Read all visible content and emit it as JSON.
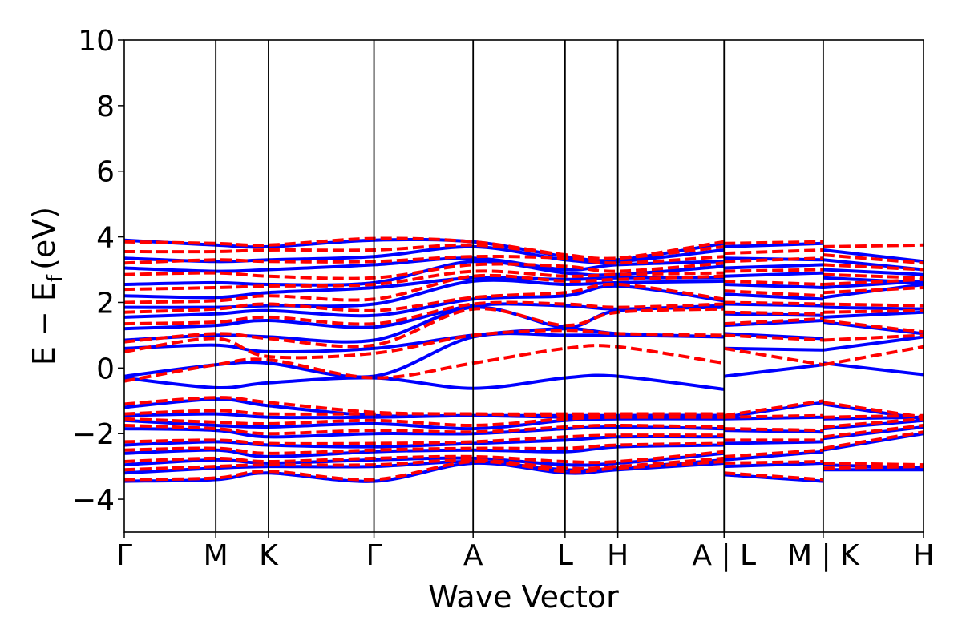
{
  "chart_data": {
    "type": "line",
    "xlabel": "Wave Vector",
    "ylabel_main": "E − E",
    "ylabel_sub": "f",
    "ylabel_unit": "(eV)",
    "ylim": [
      -5,
      10
    ],
    "yticks": [
      -4,
      -2,
      0,
      2,
      4,
      6,
      8,
      10
    ],
    "ytick_labels": [
      "−4",
      "−2",
      "0",
      "2",
      "4",
      "6",
      "8",
      "10"
    ],
    "xlim": [
      0,
      1
    ],
    "kpoints": [
      {
        "label": "Γ",
        "x": 0.0
      },
      {
        "label": "M",
        "x": 0.1145
      },
      {
        "label": "K",
        "x": 0.1805
      },
      {
        "label": "Γ",
        "x": 0.3125
      },
      {
        "label": "A",
        "x": 0.4365
      },
      {
        "label": "L",
        "x": 0.5515
      },
      {
        "label": "H",
        "x": 0.6175
      },
      {
        "label": "A | L",
        "x": 0.7505
      },
      {
        "label": "M | K",
        "x": 0.8745
      },
      {
        "label": "H",
        "x": 1.0
      }
    ],
    "series": [
      {
        "style": "solid",
        "color": "#0000ff",
        "x": [
          0.0,
          0.1145,
          0.1805,
          0.3125,
          0.4365,
          0.5515,
          0.6175,
          0.7505
        ],
        "bands": [
          [
            -3.45,
            -3.4,
            -3.2,
            -3.45,
            -2.9,
            -3.2,
            -3.1,
            -2.9
          ],
          [
            -3.2,
            -3.05,
            -3.0,
            -3.0,
            -2.85,
            -3.1,
            -3.05,
            -2.8
          ],
          [
            -2.95,
            -2.8,
            -2.9,
            -2.8,
            -2.75,
            -2.95,
            -2.9,
            -2.6
          ],
          [
            -2.6,
            -2.5,
            -2.7,
            -2.55,
            -2.5,
            -2.55,
            -2.4,
            -2.35
          ],
          [
            -2.35,
            -2.25,
            -2.35,
            -2.4,
            -2.3,
            -2.2,
            -2.1,
            -2.1
          ],
          [
            -1.85,
            -1.9,
            -2.1,
            -2.0,
            -2.0,
            -1.85,
            -1.8,
            -1.85
          ],
          [
            -1.6,
            -1.75,
            -1.8,
            -1.7,
            -1.85,
            -1.6,
            -1.55,
            -1.55
          ],
          [
            -1.45,
            -1.4,
            -1.5,
            -1.5,
            -1.45,
            -1.5,
            -1.45,
            -1.45
          ],
          [
            -1.2,
            -0.95,
            -1.15,
            -1.45,
            -1.45,
            -1.45,
            -1.45,
            -1.45
          ],
          [
            -0.3,
            -0.6,
            -0.45,
            -0.3,
            -0.62,
            -0.3,
            -0.25,
            -0.65
          ],
          [
            -0.25,
            0.1,
            0.15,
            -0.25,
            0.95,
            1.0,
            1.0,
            0.95
          ],
          [
            0.6,
            0.7,
            0.5,
            0.6,
            1.0,
            1.2,
            1.05,
            0.95
          ],
          [
            0.85,
            1.0,
            0.95,
            0.85,
            1.85,
            1.25,
            1.75,
            1.85
          ],
          [
            1.2,
            1.3,
            1.45,
            1.25,
            1.9,
            1.9,
            1.8,
            1.9
          ],
          [
            1.55,
            1.65,
            1.75,
            1.6,
            2.1,
            2.2,
            2.5,
            2.05
          ],
          [
            1.85,
            1.85,
            1.9,
            1.95,
            2.65,
            2.55,
            2.6,
            2.65
          ],
          [
            2.2,
            2.15,
            2.3,
            2.45,
            2.75,
            2.7,
            2.75,
            2.75
          ],
          [
            2.55,
            2.6,
            2.55,
            2.6,
            3.25,
            2.9,
            2.85,
            3.1
          ],
          [
            3.05,
            2.95,
            3.0,
            3.15,
            3.35,
            3.0,
            3.15,
            3.25
          ],
          [
            3.35,
            3.25,
            3.3,
            3.4,
            3.7,
            3.3,
            3.25,
            3.6
          ],
          [
            3.9,
            3.75,
            3.7,
            3.9,
            3.85,
            3.4,
            3.3,
            3.8
          ]
        ]
      },
      {
        "style": "dashed",
        "color": "#ff0000",
        "x": [
          0.0,
          0.1145,
          0.1805,
          0.3125,
          0.4365,
          0.5515,
          0.6175,
          0.7505
        ],
        "bands": [
          [
            -3.4,
            -3.35,
            -3.15,
            -3.4,
            -2.85,
            -3.15,
            -3.05,
            -2.85
          ],
          [
            -3.1,
            -3.0,
            -2.95,
            -2.95,
            -2.8,
            -3.05,
            -3.0,
            -2.75
          ],
          [
            -2.85,
            -2.75,
            -2.85,
            -2.75,
            -2.7,
            -2.85,
            -2.85,
            -2.55
          ],
          [
            -2.5,
            -2.45,
            -2.6,
            -2.5,
            -2.45,
            -2.45,
            -2.35,
            -2.3
          ],
          [
            -2.25,
            -2.2,
            -2.3,
            -2.3,
            -2.25,
            -2.1,
            -2.05,
            -2.05
          ],
          [
            -1.75,
            -1.85,
            -2.0,
            -1.9,
            -1.95,
            -1.8,
            -1.75,
            -1.8
          ],
          [
            -1.55,
            -1.65,
            -1.7,
            -1.6,
            -1.75,
            -1.55,
            -1.5,
            -1.5
          ],
          [
            -1.4,
            -1.3,
            -1.4,
            -1.4,
            -1.4,
            -1.45,
            -1.4,
            -1.4
          ],
          [
            -1.1,
            -0.9,
            -1.05,
            -1.35,
            -1.4,
            -1.4,
            -1.4,
            -1.4
          ],
          [
            -0.4,
            0.1,
            0.25,
            -0.3,
            0.15,
            0.6,
            0.65,
            0.15
          ],
          [
            0.5,
            0.9,
            0.35,
            0.45,
            1.0,
            1.15,
            1.05,
            1.0
          ],
          [
            0.8,
            1.05,
            0.9,
            0.7,
            1.8,
            1.3,
            1.7,
            1.8
          ],
          [
            1.35,
            1.4,
            1.55,
            1.35,
            1.95,
            1.95,
            1.85,
            1.95
          ],
          [
            1.7,
            1.8,
            1.95,
            1.75,
            2.15,
            2.3,
            2.55,
            2.1
          ],
          [
            2.0,
            2.05,
            2.2,
            2.1,
            2.8,
            2.65,
            2.7,
            2.8
          ],
          [
            2.4,
            2.45,
            2.5,
            2.55,
            2.95,
            2.8,
            2.85,
            2.9
          ],
          [
            2.85,
            2.9,
            2.8,
            2.75,
            3.15,
            3.1,
            2.95,
            3.2
          ],
          [
            3.2,
            3.3,
            3.25,
            3.25,
            3.4,
            3.35,
            3.2,
            3.4
          ],
          [
            3.55,
            3.55,
            3.6,
            3.6,
            3.75,
            3.45,
            3.35,
            3.7
          ],
          [
            3.85,
            3.8,
            3.75,
            3.95,
            3.85,
            3.45,
            3.35,
            3.85
          ]
        ]
      },
      {
        "style": "solid",
        "color": "#0000ff",
        "x": [
          0.7505,
          0.8745
        ],
        "bands": [
          [
            -3.25,
            -3.45
          ],
          [
            -3.0,
            -2.9
          ],
          [
            -2.8,
            -2.55
          ],
          [
            -2.3,
            -2.25
          ],
          [
            -1.9,
            -1.95
          ],
          [
            -1.55,
            -1.5
          ],
          [
            -1.5,
            -1.05
          ],
          [
            -0.25,
            0.1
          ],
          [
            0.6,
            0.55
          ],
          [
            1.05,
            0.9
          ],
          [
            1.3,
            1.45
          ],
          [
            1.65,
            1.6
          ],
          [
            1.95,
            1.9
          ],
          [
            2.25,
            2.1
          ],
          [
            2.55,
            2.45
          ],
          [
            2.8,
            2.9
          ],
          [
            3.05,
            3.15
          ],
          [
            3.35,
            3.3
          ],
          [
            3.7,
            3.8
          ]
        ]
      },
      {
        "style": "dashed",
        "color": "#ff0000",
        "x": [
          0.7505,
          0.8745
        ],
        "bands": [
          [
            -3.2,
            -3.4
          ],
          [
            -2.9,
            -2.85
          ],
          [
            -2.7,
            -2.5
          ],
          [
            -2.2,
            -2.2
          ],
          [
            -1.85,
            -1.9
          ],
          [
            -1.5,
            -1.45
          ],
          [
            -1.45,
            -1.0
          ],
          [
            0.6,
            0.1
          ],
          [
            1.0,
            0.85
          ],
          [
            1.35,
            1.5
          ],
          [
            1.7,
            1.65
          ],
          [
            2.0,
            1.95
          ],
          [
            2.35,
            2.2
          ],
          [
            2.65,
            2.55
          ],
          [
            2.95,
            3.0
          ],
          [
            3.25,
            3.35
          ],
          [
            3.5,
            3.6
          ],
          [
            3.8,
            3.85
          ]
        ]
      },
      {
        "style": "solid",
        "color": "#0000ff",
        "x": [
          0.8745,
          1.0
        ],
        "bands": [
          [
            -3.1,
            -3.1
          ],
          [
            -2.95,
            -3.05
          ],
          [
            -2.5,
            -2.0
          ],
          [
            -2.15,
            -1.8
          ],
          [
            -1.85,
            -1.6
          ],
          [
            -1.55,
            -1.5
          ],
          [
            -1.1,
            -1.55
          ],
          [
            0.15,
            -0.2
          ],
          [
            0.55,
            0.95
          ],
          [
            1.4,
            1.05
          ],
          [
            1.55,
            1.7
          ],
          [
            1.85,
            1.8
          ],
          [
            2.15,
            2.55
          ],
          [
            2.45,
            2.65
          ],
          [
            2.75,
            2.6
          ],
          [
            3.0,
            2.85
          ],
          [
            3.3,
            3.0
          ],
          [
            3.6,
            3.25
          ]
        ]
      },
      {
        "style": "dashed",
        "color": "#ff0000",
        "x": [
          0.8745,
          1.0
        ],
        "bands": [
          [
            -3.05,
            -3.0
          ],
          [
            -2.9,
            -2.95
          ],
          [
            -2.45,
            -1.95
          ],
          [
            -2.1,
            -1.75
          ],
          [
            -1.8,
            -1.55
          ],
          [
            -1.5,
            -1.45
          ],
          [
            -1.05,
            -1.5
          ],
          [
            0.1,
            0.65
          ],
          [
            0.85,
            1.0
          ],
          [
            1.45,
            1.1
          ],
          [
            1.7,
            1.75
          ],
          [
            1.95,
            1.9
          ],
          [
            2.3,
            2.45
          ],
          [
            2.55,
            2.7
          ],
          [
            2.85,
            2.75
          ],
          [
            3.15,
            3.0
          ],
          [
            3.45,
            3.2
          ],
          [
            3.7,
            3.75
          ]
        ]
      }
    ]
  }
}
